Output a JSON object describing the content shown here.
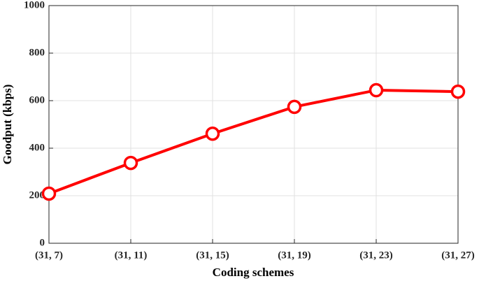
{
  "chart_data": {
    "type": "line",
    "x_label": "Coding schemes",
    "y_label": "Goodput (kbps)",
    "categories": [
      "(31, 7)",
      "(31, 11)",
      "(31, 15)",
      "(31, 19)",
      "(31, 23)",
      "(31, 27)"
    ],
    "values": [
      209,
      338,
      461,
      574,
      644,
      638
    ],
    "color": "#ff0000",
    "ylim": [
      0,
      1000
    ],
    "yticks": [
      0,
      200,
      400,
      600,
      800,
      1000
    ],
    "grid": true
  }
}
